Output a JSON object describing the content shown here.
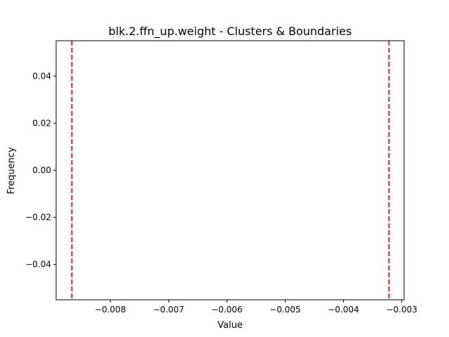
{
  "chart_data": {
    "type": "line",
    "title": "blk.2.ffn_up.weight - Clusters & Boundaries",
    "xlabel": "Value",
    "ylabel": "Frequency",
    "xlim": [
      -0.00893,
      -0.00296
    ],
    "ylim": [
      -0.055,
      0.055
    ],
    "xticks": [
      -0.008,
      -0.007,
      -0.006,
      -0.005,
      -0.004,
      -0.003
    ],
    "xtick_labels": [
      "−0.008",
      "−0.007",
      "−0.006",
      "−0.005",
      "−0.004",
      "−0.003"
    ],
    "yticks": [
      0.04,
      0.02,
      0.0,
      -0.02,
      -0.04
    ],
    "ytick_labels": [
      "0.04",
      "0.02",
      "0.00",
      "−0.02",
      "−0.04"
    ],
    "boundaries": [
      {
        "x": -0.00866,
        "color": "#d62728",
        "style": "dashed"
      },
      {
        "x": -0.00322,
        "color": "#d62728",
        "style": "dashed"
      }
    ],
    "grid": false,
    "legend": "none"
  }
}
